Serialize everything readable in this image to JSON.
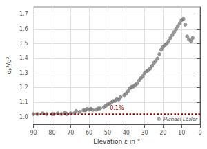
{
  "chart_data": {
    "type": "scatter",
    "title": "",
    "xlabel": "Elevation ε in °",
    "ylabel": "σₚ²/σ²",
    "xlim": [
      90,
      0
    ],
    "ylim": [
      0.95,
      1.75
    ],
    "xticks": [
      90,
      80,
      70,
      60,
      50,
      40,
      30,
      20,
      10,
      0
    ],
    "yticks": [
      {
        "value": 1.0,
        "label": "1.0"
      },
      1.1,
      1.2,
      1.3,
      1.4,
      1.5,
      1.6,
      1.7
    ],
    "grid": true,
    "color": "#808080",
    "marker": "circle",
    "x": [
      90,
      88,
      85,
      83,
      80,
      79,
      77,
      75,
      73,
      72,
      70,
      68,
      67,
      65,
      63,
      62,
      61,
      60,
      59,
      58,
      56,
      55,
      54,
      52,
      51,
      50,
      49,
      48,
      47,
      46,
      45,
      44,
      43,
      41,
      40,
      39,
      38,
      37,
      36,
      35,
      34,
      33,
      32,
      31,
      30,
      29,
      28,
      27,
      26,
      25,
      24,
      23,
      22,
      21,
      20,
      19,
      18,
      17,
      16,
      15,
      14,
      13,
      12,
      11,
      10,
      9,
      8,
      7,
      6,
      5,
      4
    ],
    "values": [
      1.02,
      1.02,
      1.025,
      1.02,
      1.02,
      1.02,
      1.025,
      1.02,
      1.03,
      1.02,
      1.025,
      1.025,
      1.04,
      1.035,
      1.045,
      1.045,
      1.055,
      1.05,
      1.055,
      1.048,
      1.05,
      1.058,
      1.058,
      1.065,
      1.075,
      1.085,
      1.09,
      1.098,
      1.108,
      1.11,
      1.125,
      1.118,
      1.135,
      1.148,
      1.158,
      1.175,
      1.195,
      1.205,
      1.208,
      1.218,
      1.228,
      1.248,
      1.265,
      1.278,
      1.298,
      1.31,
      1.318,
      1.33,
      1.348,
      1.368,
      1.38,
      1.398,
      1.428,
      1.458,
      1.478,
      1.49,
      1.5,
      1.518,
      1.538,
      1.558,
      1.578,
      1.598,
      1.618,
      1.638,
      1.66,
      1.668,
      1.628,
      1.548,
      1.528,
      1.518,
      1.538
    ],
    "annotations": [
      {
        "type": "hline",
        "y": 1.02,
        "text": "0.1%",
        "color": "#8B0000"
      },
      {
        "type": "text",
        "text": "© Michael Lösler"
      }
    ]
  }
}
